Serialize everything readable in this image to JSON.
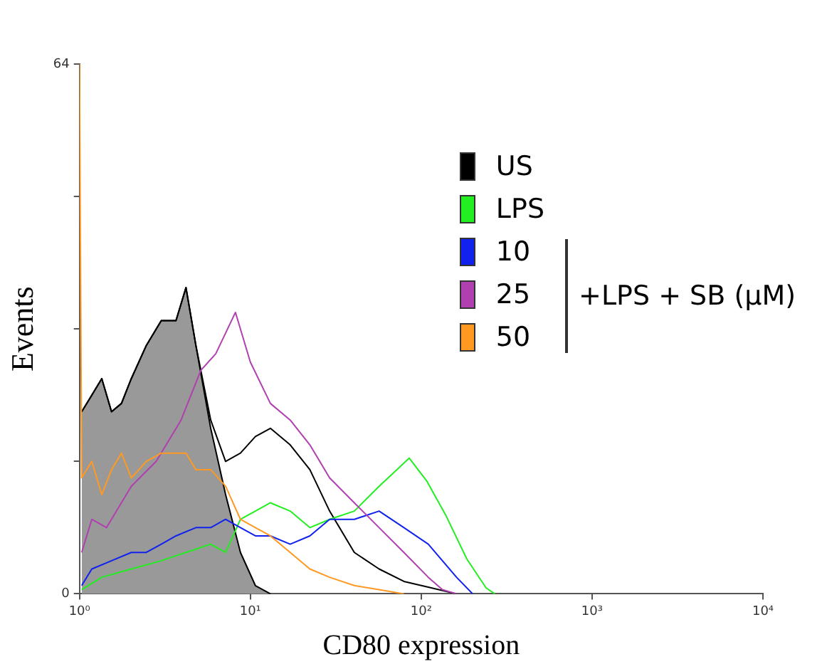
{
  "chart_data": {
    "type": "line",
    "xlabel": "CD80 expression",
    "ylabel": "Events",
    "log": "x",
    "xlim": [
      1,
      10000
    ],
    "xticks": [
      {
        "value": 1,
        "label": "10⁰"
      },
      {
        "value": 10,
        "label": "10¹"
      },
      {
        "value": 100,
        "label": "10²"
      },
      {
        "value": 1000,
        "label": "10³"
      },
      {
        "value": 10000,
        "label": "10⁴"
      }
    ],
    "ylim": [
      0,
      64
    ],
    "yticks": [
      0,
      {
        "value": 16,
        "label": null
      },
      {
        "value": 32,
        "label": null
      },
      {
        "value": 48,
        "label": null
      },
      64
    ],
    "grid": false,
    "legend": "top right",
    "marker": "none",
    "line_style": "solid",
    "annotations": [
      "+LPS + SB (μM)"
    ],
    "series": [
      {
        "type": "area",
        "color": "#999999",
        "x": [
          1.03,
          1.18,
          1.35,
          1.54,
          1.76,
          2.01,
          2.46,
          3.01,
          3.67,
          4.2,
          4.8,
          5.86,
          7.16,
          8.75,
          10.7,
          13.1
        ],
        "values": [
          22,
          24,
          26,
          22,
          23,
          26,
          30,
          33,
          33,
          37,
          30,
          20,
          12,
          5,
          1,
          0
        ]
      },
      {
        "name": "US",
        "color": "#000000",
        "x": [
          1.03,
          1.18,
          1.35,
          1.54,
          1.76,
          2.01,
          2.46,
          3.01,
          3.67,
          4.2,
          4.8,
          5.86,
          7.16,
          8.75,
          10.7,
          13.1,
          17.1,
          22.3,
          29.1,
          40.6,
          56.7,
          79.2,
          110,
          161
        ],
        "values": [
          22,
          24,
          26,
          22,
          23,
          26,
          30,
          33,
          33,
          37,
          30,
          21,
          16,
          17,
          19,
          20,
          18,
          15,
          10,
          5,
          3,
          1.5,
          0.8,
          0
        ]
      },
      {
        "name": "LPS",
        "color": "#22ee22",
        "x": [
          1.03,
          1.35,
          2.01,
          3.01,
          4.2,
          5.86,
          7.16,
          8.75,
          10.7,
          13.1,
          17.1,
          22.3,
          29.1,
          40.6,
          56.7,
          72,
          85,
          108,
          140,
          185,
          240,
          270
        ],
        "values": [
          0.5,
          2,
          3,
          4,
          5,
          6,
          5,
          9,
          10,
          11,
          10,
          8,
          9,
          10,
          13,
          15,
          16.4,
          13.6,
          9.4,
          4.2,
          0.7,
          0
        ]
      },
      {
        "name": "10",
        "color": "#1122ee",
        "x": [
          1.03,
          1.18,
          1.54,
          2.01,
          2.46,
          3.01,
          3.67,
          4.8,
          5.86,
          7.16,
          8.75,
          10.7,
          13.1,
          17.1,
          22.3,
          29.1,
          40.6,
          56.7,
          79.2,
          110,
          161,
          200
        ],
        "values": [
          1,
          3,
          4,
          5,
          5,
          6,
          7,
          8,
          8,
          9,
          8,
          7,
          7,
          6,
          7,
          9,
          9,
          10,
          8,
          6,
          2,
          0
        ]
      },
      {
        "name": "25",
        "color": "#b040b0",
        "x": [
          1.03,
          1.18,
          1.44,
          2.01,
          2.81,
          3.93,
          5.13,
          6.27,
          8.18,
          10,
          13.1,
          17.1,
          22.3,
          29.1,
          40.6,
          56.7,
          79.2,
          110,
          133,
          161
        ],
        "values": [
          5,
          9,
          8,
          13,
          16,
          21,
          27,
          29,
          34,
          28,
          23,
          21,
          18,
          14,
          11,
          8,
          5,
          2,
          0.5,
          0
        ]
      },
      {
        "name": "50",
        "color": "#ff9922",
        "x": [
          1,
          1.03,
          1.18,
          1.35,
          1.54,
          1.76,
          2.01,
          2.46,
          3.01,
          3.67,
          4.2,
          4.8,
          5.86,
          7.16,
          8.75,
          10.7,
          13.1,
          17.1,
          22.3,
          29.1,
          40.6,
          56.7,
          79.2
        ],
        "values": [
          64,
          14,
          16,
          12,
          15,
          17,
          14,
          16,
          17,
          17,
          17,
          15,
          15,
          13,
          9,
          8,
          7,
          5,
          3,
          2,
          1,
          0.5,
          0
        ]
      }
    ]
  }
}
